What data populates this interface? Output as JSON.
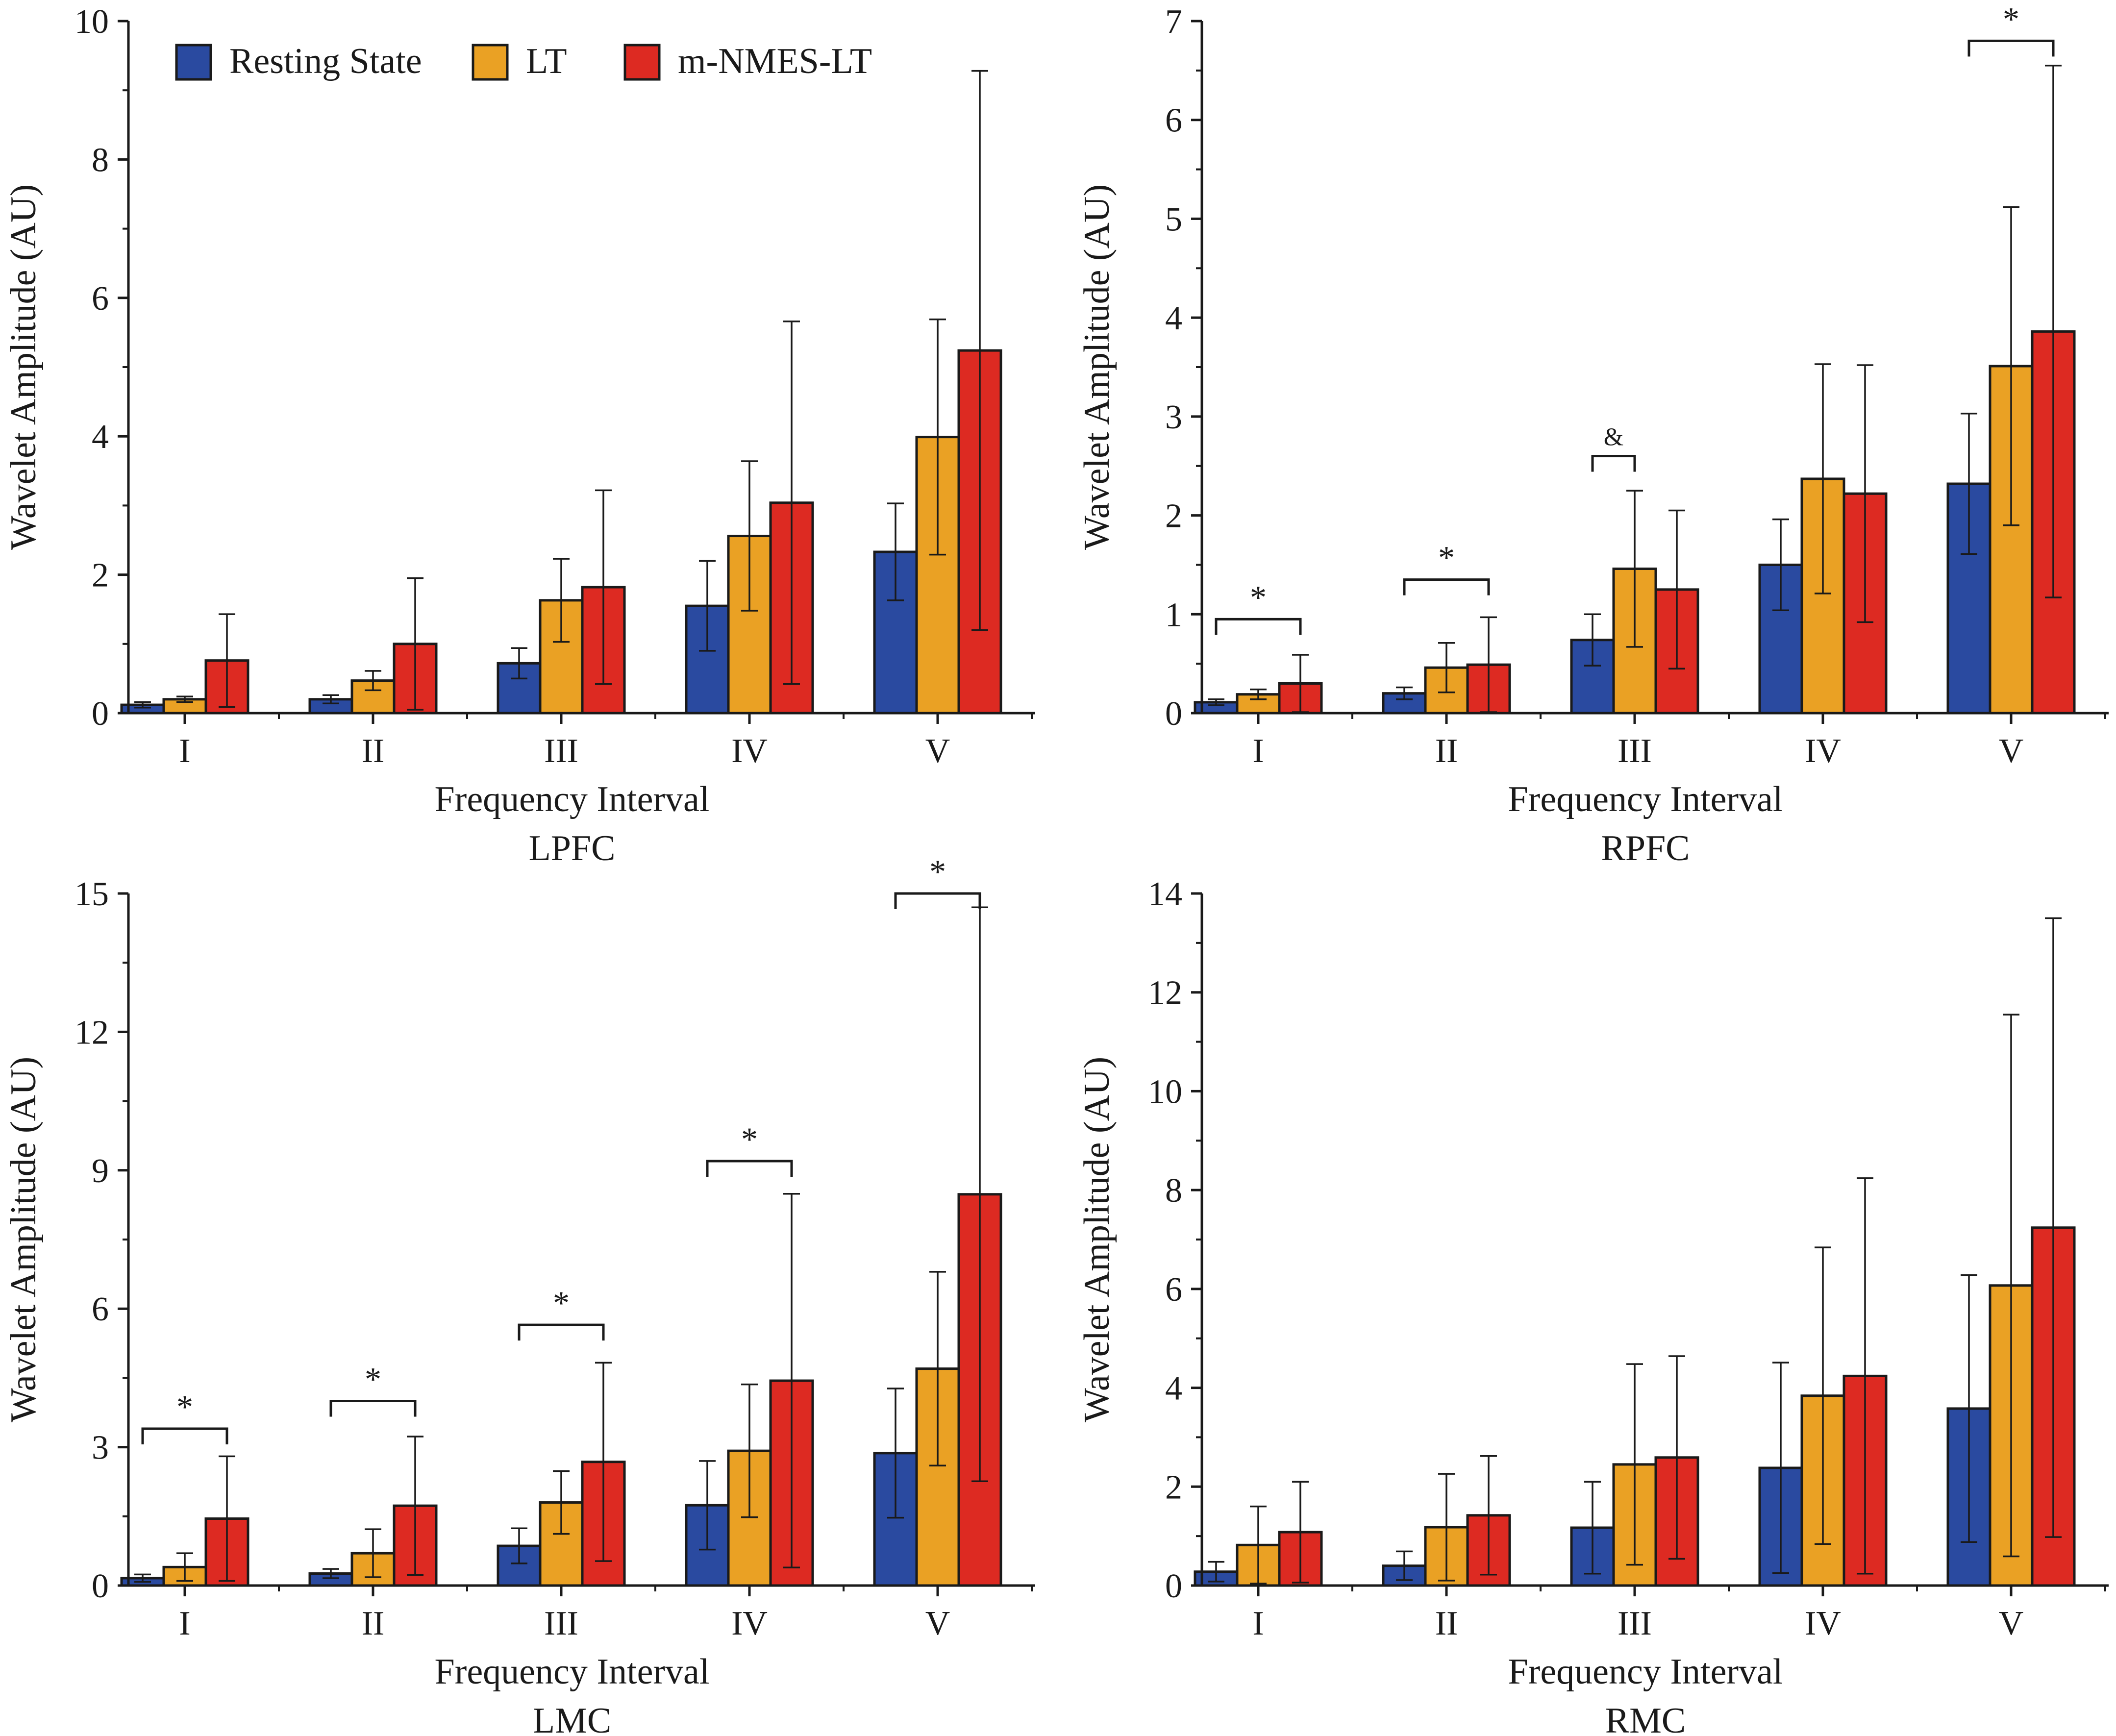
{
  "colors": {
    "resting": "#2a4aa0",
    "lt": "#eaa124",
    "nmes": "#dd2a22",
    "axis": "#1a1a1a",
    "background": "#ffffff"
  },
  "legend": {
    "items": [
      {
        "label": "Resting State",
        "color": "#2a4aa0"
      },
      {
        "label": "LT",
        "color": "#eaa124"
      },
      {
        "label": "m-NMES-LT",
        "color": "#dd2a22"
      }
    ]
  },
  "chart_data": [
    {
      "type": "bar",
      "name": "LPFC",
      "title": "LPFC",
      "xlabel": "Frequency Interval",
      "ylabel": "Wavelet Amplitude (AU)",
      "categories": [
        "I",
        "II",
        "III",
        "IV",
        "V"
      ],
      "ylim": [
        0,
        10
      ],
      "yticks": [
        0,
        2,
        4,
        6,
        8,
        10
      ],
      "series": [
        {
          "name": "Resting State",
          "values": [
            0.12,
            0.2,
            0.72,
            1.55,
            2.33
          ],
          "error": [
            0.04,
            0.06,
            0.22,
            0.65,
            0.7
          ]
        },
        {
          "name": "LT",
          "values": [
            0.2,
            0.47,
            1.63,
            2.56,
            3.99
          ],
          "error": [
            0.04,
            0.14,
            0.6,
            1.08,
            1.7
          ]
        },
        {
          "name": "m-NMES-LT",
          "values": [
            0.76,
            1.0,
            1.82,
            3.04,
            5.24
          ],
          "error": [
            0.67,
            0.95,
            1.4,
            2.62,
            4.04
          ]
        }
      ],
      "annotations": []
    },
    {
      "type": "bar",
      "name": "RPFC",
      "title": "RPFC",
      "xlabel": "Frequency Interval",
      "ylabel": "Wavelet Amplitude (AU)",
      "categories": [
        "I",
        "II",
        "III",
        "IV",
        "V"
      ],
      "ylim": [
        0,
        7
      ],
      "yticks": [
        0,
        1,
        2,
        3,
        4,
        5,
        6,
        7
      ],
      "series": [
        {
          "name": "Resting State",
          "values": [
            0.11,
            0.2,
            0.74,
            1.5,
            2.32
          ],
          "error": [
            0.03,
            0.06,
            0.26,
            0.46,
            0.71
          ]
        },
        {
          "name": "LT",
          "values": [
            0.19,
            0.46,
            1.46,
            2.37,
            3.51
          ],
          "error": [
            0.05,
            0.25,
            0.79,
            1.16,
            1.61
          ]
        },
        {
          "name": "m-NMES-LT",
          "values": [
            0.3,
            0.49,
            1.25,
            2.22,
            3.86
          ],
          "error": [
            0.29,
            0.48,
            0.8,
            1.3,
            2.69
          ]
        }
      ],
      "annotations": [
        {
          "text": "*",
          "category": "I",
          "from": "Resting State",
          "to": "m-NMES-LT",
          "y": 0.95
        },
        {
          "text": "*",
          "category": "II",
          "from": "Resting State",
          "to": "m-NMES-LT",
          "y": 1.35
        },
        {
          "text": "&",
          "category": "III",
          "from": "Resting State",
          "to": "LT",
          "y": 2.6
        },
        {
          "text": "*",
          "category": "V",
          "from": "Resting State",
          "to": "m-NMES-LT",
          "y": 6.8
        }
      ]
    },
    {
      "type": "bar",
      "name": "LMC",
      "title": "LMC",
      "xlabel": "Frequency Interval",
      "ylabel": "Wavelet Amplitude (AU)",
      "categories": [
        "I",
        "II",
        "III",
        "IV",
        "V"
      ],
      "ylim": [
        0,
        15
      ],
      "yticks": [
        0,
        3,
        6,
        9,
        12,
        15
      ],
      "series": [
        {
          "name": "Resting State",
          "values": [
            0.16,
            0.26,
            0.86,
            1.74,
            2.87
          ],
          "error": [
            0.08,
            0.1,
            0.38,
            0.96,
            1.4
          ]
        },
        {
          "name": "LT",
          "values": [
            0.4,
            0.7,
            1.8,
            2.92,
            4.7
          ],
          "error": [
            0.3,
            0.52,
            0.68,
            1.44,
            2.1
          ]
        },
        {
          "name": "m-NMES-LT",
          "values": [
            1.45,
            1.73,
            2.68,
            4.44,
            8.48
          ],
          "error": [
            1.35,
            1.5,
            2.15,
            4.05,
            6.22
          ]
        }
      ],
      "annotations": [
        {
          "text": "*",
          "category": "I",
          "from": "Resting State",
          "to": "m-NMES-LT",
          "y": 3.4
        },
        {
          "text": "*",
          "category": "II",
          "from": "Resting State",
          "to": "m-NMES-LT",
          "y": 4.0
        },
        {
          "text": "*",
          "category": "III",
          "from": "Resting State",
          "to": "m-NMES-LT",
          "y": 5.65
        },
        {
          "text": "*",
          "category": "IV",
          "from": "Resting State",
          "to": "m-NMES-LT",
          "y": 9.2
        },
        {
          "text": "*",
          "category": "V",
          "from": "Resting State",
          "to": "m-NMES-LT",
          "y": 15.0
        }
      ]
    },
    {
      "type": "bar",
      "name": "RMC",
      "title": "RMC",
      "xlabel": "Frequency Interval",
      "ylabel": "Wavelet Amplitude (AU)",
      "categories": [
        "I",
        "II",
        "III",
        "IV",
        "V"
      ],
      "ylim": [
        0,
        14
      ],
      "yticks": [
        0,
        2,
        4,
        6,
        8,
        10,
        12,
        14
      ],
      "series": [
        {
          "name": "Resting State",
          "values": [
            0.28,
            0.4,
            1.17,
            2.38,
            3.58
          ],
          "error": [
            0.2,
            0.29,
            0.93,
            2.13,
            2.7
          ]
        },
        {
          "name": "LT",
          "values": [
            0.82,
            1.18,
            2.45,
            3.84,
            6.07
          ],
          "error": [
            0.78,
            1.08,
            2.03,
            3.0,
            5.48
          ]
        },
        {
          "name": "m-NMES-LT",
          "values": [
            1.08,
            1.42,
            2.59,
            4.24,
            7.24
          ],
          "error": [
            1.02,
            1.2,
            2.05,
            4.0,
            6.26
          ]
        }
      ],
      "annotations": []
    }
  ]
}
